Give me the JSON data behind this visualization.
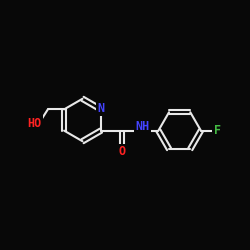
{
  "background_color": "#080808",
  "atom_colors": {
    "N": "#4444ff",
    "O": "#ff2222",
    "F": "#44bb44",
    "C": "#e8e8e8"
  },
  "bond_color": "#e8e8e8",
  "bond_width": 1.5,
  "figsize": [
    2.5,
    2.5
  ],
  "dpi": 100,
  "xlim": [
    0,
    10
  ],
  "ylim": [
    0,
    10
  ]
}
